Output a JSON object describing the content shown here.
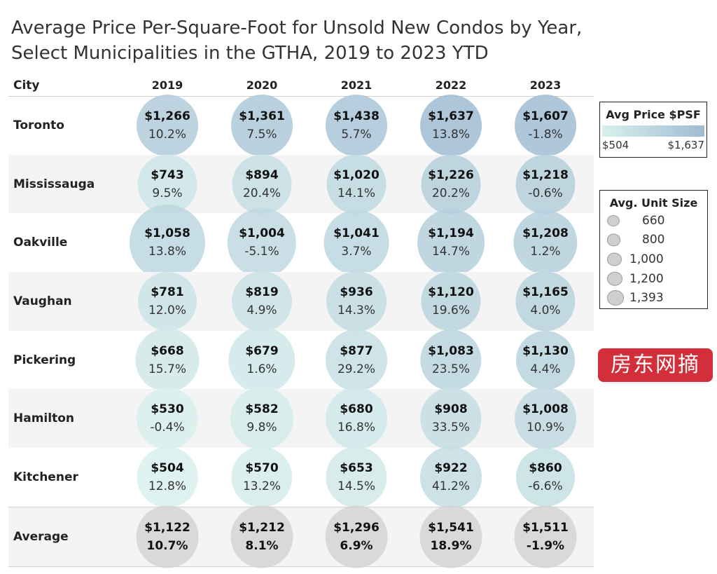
{
  "title": {
    "line1": "Average Price Per-Square-Foot for Unsold New Condos by Year,",
    "line2": "Select Municipalities in the GTHA, 2019 to 2023 YTD"
  },
  "header": {
    "city_label": "City"
  },
  "chart_data": {
    "type": "table",
    "columns": [
      "2019",
      "2020",
      "2021",
      "2022",
      "2023"
    ],
    "rows": [
      {
        "city": "Toronto",
        "cells": [
          {
            "price": "$1,266",
            "change": "10.2%",
            "psf": 1266,
            "size": 780
          },
          {
            "price": "$1,361",
            "change": "7.5%",
            "psf": 1361,
            "size": 780
          },
          {
            "price": "$1,438",
            "change": "5.7%",
            "psf": 1438,
            "size": 780
          },
          {
            "price": "$1,637",
            "change": "13.8%",
            "psf": 1637,
            "size": 780
          },
          {
            "price": "$1,607",
            "change": "-1.8%",
            "psf": 1607,
            "size": 780
          }
        ]
      },
      {
        "city": "Mississauga",
        "cells": [
          {
            "price": "$743",
            "change": "9.5%",
            "psf": 743,
            "size": 690
          },
          {
            "price": "$894",
            "change": "20.4%",
            "psf": 894,
            "size": 690
          },
          {
            "price": "$1,020",
            "change": "14.1%",
            "psf": 1020,
            "size": 690
          },
          {
            "price": "$1,226",
            "change": "20.2%",
            "psf": 1226,
            "size": 690
          },
          {
            "price": "$1,218",
            "change": "-0.6%",
            "psf": 1218,
            "size": 690
          }
        ]
      },
      {
        "city": "Oakville",
        "cells": [
          {
            "price": "$1,058",
            "change": "13.8%",
            "psf": 1058,
            "size": 1393
          },
          {
            "price": "$1,004",
            "change": "-5.1%",
            "psf": 1004,
            "size": 1100
          },
          {
            "price": "$1,041",
            "change": "3.7%",
            "psf": 1041,
            "size": 930
          },
          {
            "price": "$1,194",
            "change": "14.7%",
            "psf": 1194,
            "size": 1020
          },
          {
            "price": "$1,208",
            "change": "1.2%",
            "psf": 1208,
            "size": 880
          }
        ]
      },
      {
        "city": "Vaughan",
        "cells": [
          {
            "price": "$781",
            "change": "12.0%",
            "psf": 781,
            "size": 660
          },
          {
            "price": "$819",
            "change": "4.9%",
            "psf": 819,
            "size": 720
          },
          {
            "price": "$936",
            "change": "14.3%",
            "psf": 936,
            "size": 720
          },
          {
            "price": "$1,120",
            "change": "19.6%",
            "psf": 1120,
            "size": 700
          },
          {
            "price": "$1,165",
            "change": "4.0%",
            "psf": 1165,
            "size": 700
          }
        ]
      },
      {
        "city": "Pickering",
        "cells": [
          {
            "price": "$668",
            "change": "15.7%",
            "psf": 668,
            "size": 880
          },
          {
            "price": "$679",
            "change": "1.6%",
            "psf": 679,
            "size": 1000
          },
          {
            "price": "$877",
            "change": "29.2%",
            "psf": 877,
            "size": 780
          },
          {
            "price": "$1,083",
            "change": "23.5%",
            "psf": 1083,
            "size": 760
          },
          {
            "price": "$1,130",
            "change": "4.4%",
            "psf": 1130,
            "size": 660
          }
        ]
      },
      {
        "city": "Hamilton",
        "cells": [
          {
            "price": "$530",
            "change": "-0.4%",
            "psf": 530,
            "size": 760
          },
          {
            "price": "$582",
            "change": "9.8%",
            "psf": 582,
            "size": 840
          },
          {
            "price": "$680",
            "change": "16.8%",
            "psf": 680,
            "size": 780
          },
          {
            "price": "$908",
            "change": "33.5%",
            "psf": 908,
            "size": 760
          },
          {
            "price": "$1,008",
            "change": "10.9%",
            "psf": 1008,
            "size": 780
          }
        ]
      },
      {
        "city": "Kitchener",
        "cells": [
          {
            "price": "$504",
            "change": "12.8%",
            "psf": 504,
            "size": 740
          },
          {
            "price": "$570",
            "change": "13.2%",
            "psf": 570,
            "size": 760
          },
          {
            "price": "$653",
            "change": "14.5%",
            "psf": 653,
            "size": 760
          },
          {
            "price": "$922",
            "change": "41.2%",
            "psf": 922,
            "size": 780
          },
          {
            "price": "$860",
            "change": "-6.6%",
            "psf": 860,
            "size": 660
          }
        ]
      },
      {
        "city": "Average",
        "is_average": true,
        "cells": [
          {
            "price": "$1,122",
            "change": "10.7%",
            "psf": 1122,
            "size": 810
          },
          {
            "price": "$1,212",
            "change": "8.1%",
            "psf": 1212,
            "size": 810
          },
          {
            "price": "$1,296",
            "change": "6.9%",
            "psf": 1296,
            "size": 810
          },
          {
            "price": "$1,541",
            "change": "18.9%",
            "psf": 1541,
            "size": 810
          },
          {
            "price": "$1,511",
            "change": "-1.9%",
            "psf": 1511,
            "size": 810
          }
        ]
      }
    ],
    "color_scale": {
      "min": 504,
      "max": 1637,
      "min_color": "#d8f0ec",
      "max_color": "#9fbcd3",
      "average_color": "#d3d3d3"
    }
  },
  "legend_color": {
    "title": "Avg Price $PSF",
    "min_label": "$504",
    "max_label": "$1,637"
  },
  "legend_size": {
    "title": "Avg. Unit Size",
    "items": [
      "660",
      "800",
      "1,000",
      "1,200",
      "1,393"
    ],
    "values": [
      660,
      800,
      1000,
      1200,
      1393
    ]
  },
  "badge": {
    "text": "房东网摘"
  }
}
